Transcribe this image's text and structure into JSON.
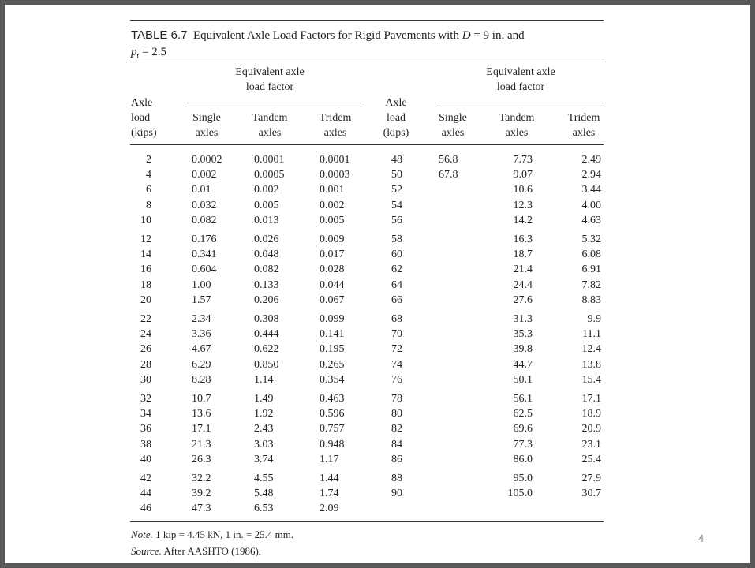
{
  "table": {
    "label": "TABLE 6.7",
    "title": [
      "Equivalent Axle Load Factors for Rigid Pavements with ",
      "D",
      " = 9 in. and",
      "p",
      "t",
      " = 2.5"
    ],
    "group_header": [
      "Equivalent axle",
      "load factor"
    ],
    "load_header": [
      "Axle",
      "load",
      "(kips)"
    ],
    "column_headers": [
      [
        "Single",
        "axles"
      ],
      [
        "Tandem",
        "axles"
      ],
      [
        "Tridem",
        "axles"
      ]
    ],
    "rows": [
      {
        "left": [
          "2",
          "0.0002",
          "0.0001",
          "0.0001"
        ],
        "right": [
          "48",
          "56.8",
          "7.73",
          "2.49"
        ]
      },
      {
        "left": [
          "4",
          "0.002",
          "0.0005",
          "0.0003"
        ],
        "right": [
          "50",
          "67.8",
          "9.07",
          "2.94"
        ]
      },
      {
        "left": [
          "6",
          "0.01",
          "0.002",
          "0.001"
        ],
        "right": [
          "52",
          null,
          "10.6",
          "3.44"
        ]
      },
      {
        "left": [
          "8",
          "0.032",
          "0.005",
          "0.002"
        ],
        "right": [
          "54",
          null,
          "12.3",
          "4.00"
        ]
      },
      {
        "left": [
          "10",
          "0.082",
          "0.013",
          "0.005"
        ],
        "right": [
          "56",
          null,
          "14.2",
          "4.63"
        ]
      },
      {
        "left": [
          "12",
          "0.176",
          "0.026",
          "0.009"
        ],
        "right": [
          "58",
          null,
          "16.3",
          "5.32"
        ]
      },
      {
        "left": [
          "14",
          "0.341",
          "0.048",
          "0.017"
        ],
        "right": [
          "60",
          null,
          "18.7",
          "6.08"
        ]
      },
      {
        "left": [
          "16",
          "0.604",
          "0.082",
          "0.028"
        ],
        "right": [
          "62",
          null,
          "21.4",
          "6.91"
        ]
      },
      {
        "left": [
          "18",
          "1.00",
          "0.133",
          "0.044"
        ],
        "right": [
          "64",
          null,
          "24.4",
          "7.82"
        ]
      },
      {
        "left": [
          "20",
          "1.57",
          "0.206",
          "0.067"
        ],
        "right": [
          "66",
          null,
          "27.6",
          "8.83"
        ]
      },
      {
        "left": [
          "22",
          "2.34",
          "0.308",
          "0.099"
        ],
        "right": [
          "68",
          null,
          "31.3",
          "9.9"
        ]
      },
      {
        "left": [
          "24",
          "3.36",
          "0.444",
          "0.141"
        ],
        "right": [
          "70",
          null,
          "35.3",
          "11.1"
        ]
      },
      {
        "left": [
          "26",
          "4.67",
          "0.622",
          "0.195"
        ],
        "right": [
          "72",
          null,
          "39.8",
          "12.4"
        ]
      },
      {
        "left": [
          "28",
          "6.29",
          "0.850",
          "0.265"
        ],
        "right": [
          "74",
          null,
          "44.7",
          "13.8"
        ]
      },
      {
        "left": [
          "30",
          "8.28",
          "1.14",
          "0.354"
        ],
        "right": [
          "76",
          null,
          "50.1",
          "15.4"
        ]
      },
      {
        "left": [
          "32",
          "10.7",
          "1.49",
          "0.463"
        ],
        "right": [
          "78",
          null,
          "56.1",
          "17.1"
        ]
      },
      {
        "left": [
          "34",
          "13.6",
          "1.92",
          "0.596"
        ],
        "right": [
          "80",
          null,
          "62.5",
          "18.9"
        ]
      },
      {
        "left": [
          "36",
          "17.1",
          "2.43",
          "0.757"
        ],
        "right": [
          "82",
          null,
          "69.6",
          "20.9"
        ]
      },
      {
        "left": [
          "38",
          "21.3",
          "3.03",
          "0.948"
        ],
        "right": [
          "84",
          null,
          "77.3",
          "23.1"
        ]
      },
      {
        "left": [
          "40",
          "26.3",
          "3.74",
          "1.17"
        ],
        "right": [
          "86",
          null,
          "86.0",
          "25.4"
        ]
      },
      {
        "left": [
          "42",
          "32.2",
          "4.55",
          "1.44"
        ],
        "right": [
          "88",
          null,
          "95.0",
          "27.9"
        ]
      },
      {
        "left": [
          "44",
          "39.2",
          "5.48",
          "1.74"
        ],
        "right": [
          "90",
          null,
          "105.0",
          "30.7"
        ]
      },
      {
        "left": [
          "46",
          "47.3",
          "6.53",
          "2.09"
        ],
        "right": null
      }
    ],
    "note_label": "Note.",
    "note": "1 kip = 4.45 kN, 1 in. = 25.4 mm.",
    "source_label": "Source.",
    "source": "After AASHTO (1986)."
  },
  "page_number": "4"
}
